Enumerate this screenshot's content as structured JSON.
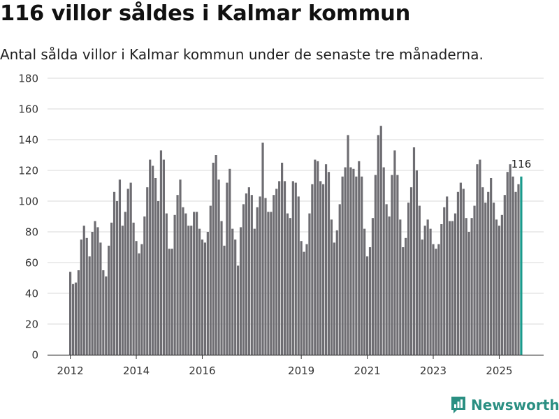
{
  "header": {
    "title": "116 villor såldes i Kalmar kommun",
    "subtitle": "Antal sålda villor i Kalmar kommun under de senaste tre månaderna."
  },
  "brand": {
    "name": "Newsworthy"
  },
  "colors": {
    "bar": "#6e6d72",
    "highlight": "#1a9a8c",
    "grid": "#d9d9d9",
    "axis": "#333333",
    "brand": "#2a8f82"
  },
  "chart_data": {
    "type": "bar",
    "title": "116 villor såldes i Kalmar kommun",
    "subtitle": "Antal sålda villor i Kalmar kommun under de senaste tre månaderna.",
    "xlabel": "",
    "ylabel": "",
    "ylim": [
      0,
      180
    ],
    "yticks": [
      0,
      20,
      40,
      60,
      80,
      100,
      120,
      140,
      160,
      180
    ],
    "xticks": [
      {
        "label": "2012",
        "index": 0
      },
      {
        "label": "2014",
        "index": 24
      },
      {
        "label": "2016",
        "index": 48
      },
      {
        "label": "2019",
        "index": 84
      },
      {
        "label": "2021",
        "index": 108
      },
      {
        "label": "2023",
        "index": 132
      },
      {
        "label": "2025",
        "index": 156
      }
    ],
    "grid": true,
    "start": "2012-01",
    "frequency": "monthly, rolling three-month sum",
    "values": [
      54,
      46,
      47,
      55,
      75,
      84,
      76,
      64,
      80,
      87,
      83,
      73,
      55,
      51,
      71,
      86,
      106,
      100,
      114,
      84,
      93,
      108,
      112,
      86,
      74,
      66,
      72,
      90,
      109,
      127,
      123,
      115,
      100,
      133,
      127,
      92,
      69,
      69,
      91,
      104,
      114,
      96,
      92,
      84,
      84,
      93,
      93,
      82,
      75,
      73,
      80,
      97,
      125,
      130,
      114,
      87,
      71,
      112,
      121,
      82,
      75,
      58,
      83,
      98,
      105,
      109,
      104,
      82,
      96,
      103,
      138,
      102,
      93,
      93,
      104,
      108,
      113,
      125,
      113,
      92,
      89,
      113,
      112,
      103,
      74,
      67,
      72,
      92,
      111,
      127,
      126,
      113,
      111,
      124,
      119,
      88,
      73,
      81,
      98,
      116,
      122,
      143,
      122,
      121,
      116,
      126,
      116,
      82,
      64,
      70,
      89,
      117,
      143,
      149,
      122,
      98,
      90,
      117,
      133,
      117,
      88,
      70,
      76,
      99,
      109,
      135,
      120,
      97,
      75,
      84,
      88,
      82,
      72,
      69,
      72,
      85,
      96,
      103,
      87,
      87,
      92,
      106,
      112,
      108,
      89,
      80,
      89,
      97,
      124,
      127,
      109,
      99,
      106,
      115,
      99,
      88,
      84,
      91,
      104,
      119,
      124,
      116,
      106,
      111,
      116
    ],
    "highlight": {
      "index": 164,
      "value": 116,
      "label": "116"
    }
  }
}
